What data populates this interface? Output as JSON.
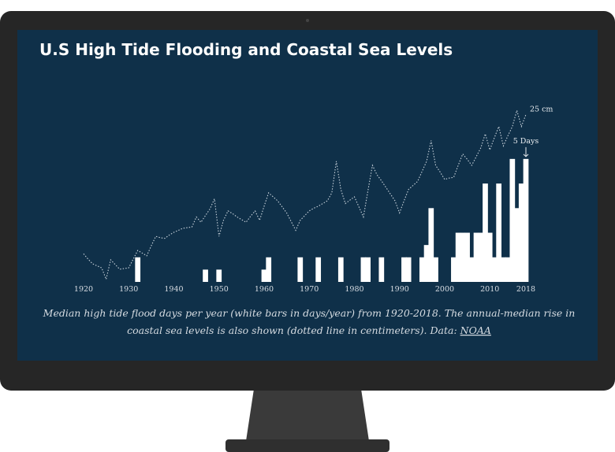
{
  "chart_data": {
    "type": "bar",
    "title": "U.S High Tide Flooding and Coastal Sea Levels",
    "caption": [
      "Median high tide flood days per year (white bars in days/year) from 1920-2018. The annual-median rise in",
      "coastal sea levels is also shown (dotted line in centimeters). Data: "
    ],
    "source_link": "NOAA",
    "x": [
      1920,
      1921,
      1922,
      1923,
      1924,
      1925,
      1926,
      1927,
      1928,
      1929,
      1930,
      1931,
      1932,
      1933,
      1934,
      1935,
      1936,
      1937,
      1938,
      1939,
      1940,
      1941,
      1942,
      1943,
      1944,
      1945,
      1946,
      1947,
      1948,
      1949,
      1950,
      1951,
      1952,
      1953,
      1954,
      1955,
      1956,
      1957,
      1958,
      1959,
      1960,
      1961,
      1962,
      1963,
      1964,
      1965,
      1966,
      1967,
      1968,
      1969,
      1970,
      1971,
      1972,
      1973,
      1974,
      1975,
      1976,
      1977,
      1978,
      1979,
      1980,
      1981,
      1982,
      1983,
      1984,
      1985,
      1986,
      1987,
      1988,
      1989,
      1990,
      1991,
      1992,
      1993,
      1994,
      1995,
      1996,
      1997,
      1998,
      1999,
      2000,
      2001,
      2002,
      2003,
      2004,
      2005,
      2006,
      2007,
      2008,
      2009,
      2010,
      2011,
      2012,
      2013,
      2014,
      2015,
      2016,
      2017,
      2018
    ],
    "xlim": [
      1920,
      2018
    ],
    "xticks": [
      1920,
      1930,
      1940,
      1950,
      1960,
      1970,
      1980,
      1990,
      2000,
      2010,
      2018
    ],
    "ylim": [
      0,
      7.3
    ],
    "y2lim": [
      0,
      26.8
    ],
    "series": [
      {
        "type": "bar",
        "color": "#ffffff",
        "values": [
          0,
          0,
          0,
          0,
          0,
          0,
          0,
          0,
          0,
          0,
          0,
          0,
          1,
          0,
          0,
          0,
          0,
          0,
          0,
          0,
          0,
          0,
          0,
          0,
          0,
          0,
          0,
          0.5,
          0,
          0,
          0.5,
          0,
          0,
          0,
          0,
          0,
          0,
          0,
          0,
          0,
          0.5,
          1,
          0,
          0,
          0,
          0,
          0,
          0,
          1,
          0,
          0,
          0,
          1,
          0,
          0,
          0,
          0,
          1,
          0,
          0,
          0,
          0,
          1,
          1,
          0,
          0,
          1,
          0,
          0,
          0,
          0,
          1,
          1,
          0,
          0,
          1,
          1.5,
          3,
          1,
          0,
          0,
          0,
          1,
          2,
          2,
          2,
          1,
          2,
          2,
          4,
          2,
          1,
          4,
          1,
          1,
          5,
          3,
          4,
          5
        ]
      },
      {
        "type": "line",
        "axis": "y2",
        "color": "#c9d3dc",
        "values": [
          4.2,
          3.4,
          2.7,
          2.4,
          2.1,
          0.4,
          3.3,
          2.6,
          1.9,
          2.0,
          2.1,
          3.4,
          4.7,
          4.3,
          3.9,
          5.4,
          6.8,
          6.6,
          6.5,
          7.0,
          7.4,
          7.7,
          8.0,
          8.1,
          8.2,
          9.7,
          8.9,
          9.9,
          10.9,
          12.4,
          6.8,
          9.2,
          10.6,
          10.2,
          9.7,
          9.3,
          8.9,
          9.8,
          10.6,
          9.2,
          11.3,
          13.3,
          12.7,
          12.1,
          11.2,
          10.3,
          9.0,
          7.7,
          9.2,
          9.9,
          10.6,
          11.0,
          11.3,
          11.7,
          12.1,
          13.3,
          18.0,
          13.8,
          11.7,
          12.2,
          12.7,
          11.2,
          9.7,
          13.6,
          17.4,
          16.0,
          15.1,
          14.1,
          13.1,
          12.1,
          10.3,
          12.1,
          13.8,
          14.4,
          15.0,
          16.5,
          18.0,
          21.1,
          17.4,
          16.4,
          15.3,
          15.5,
          15.6,
          17.4,
          19.1,
          18.3,
          17.4,
          18.7,
          20.0,
          22.1,
          19.7,
          21.5,
          23.2,
          20.3,
          21.8,
          23.2,
          25.6,
          23.2,
          25.0
        ]
      }
    ],
    "annotations": [
      {
        "text": "25 cm",
        "x": 2018,
        "y": 25,
        "axis": "y2"
      },
      {
        "text": "5 Days",
        "x": 2018,
        "y": 5
      }
    ]
  }
}
